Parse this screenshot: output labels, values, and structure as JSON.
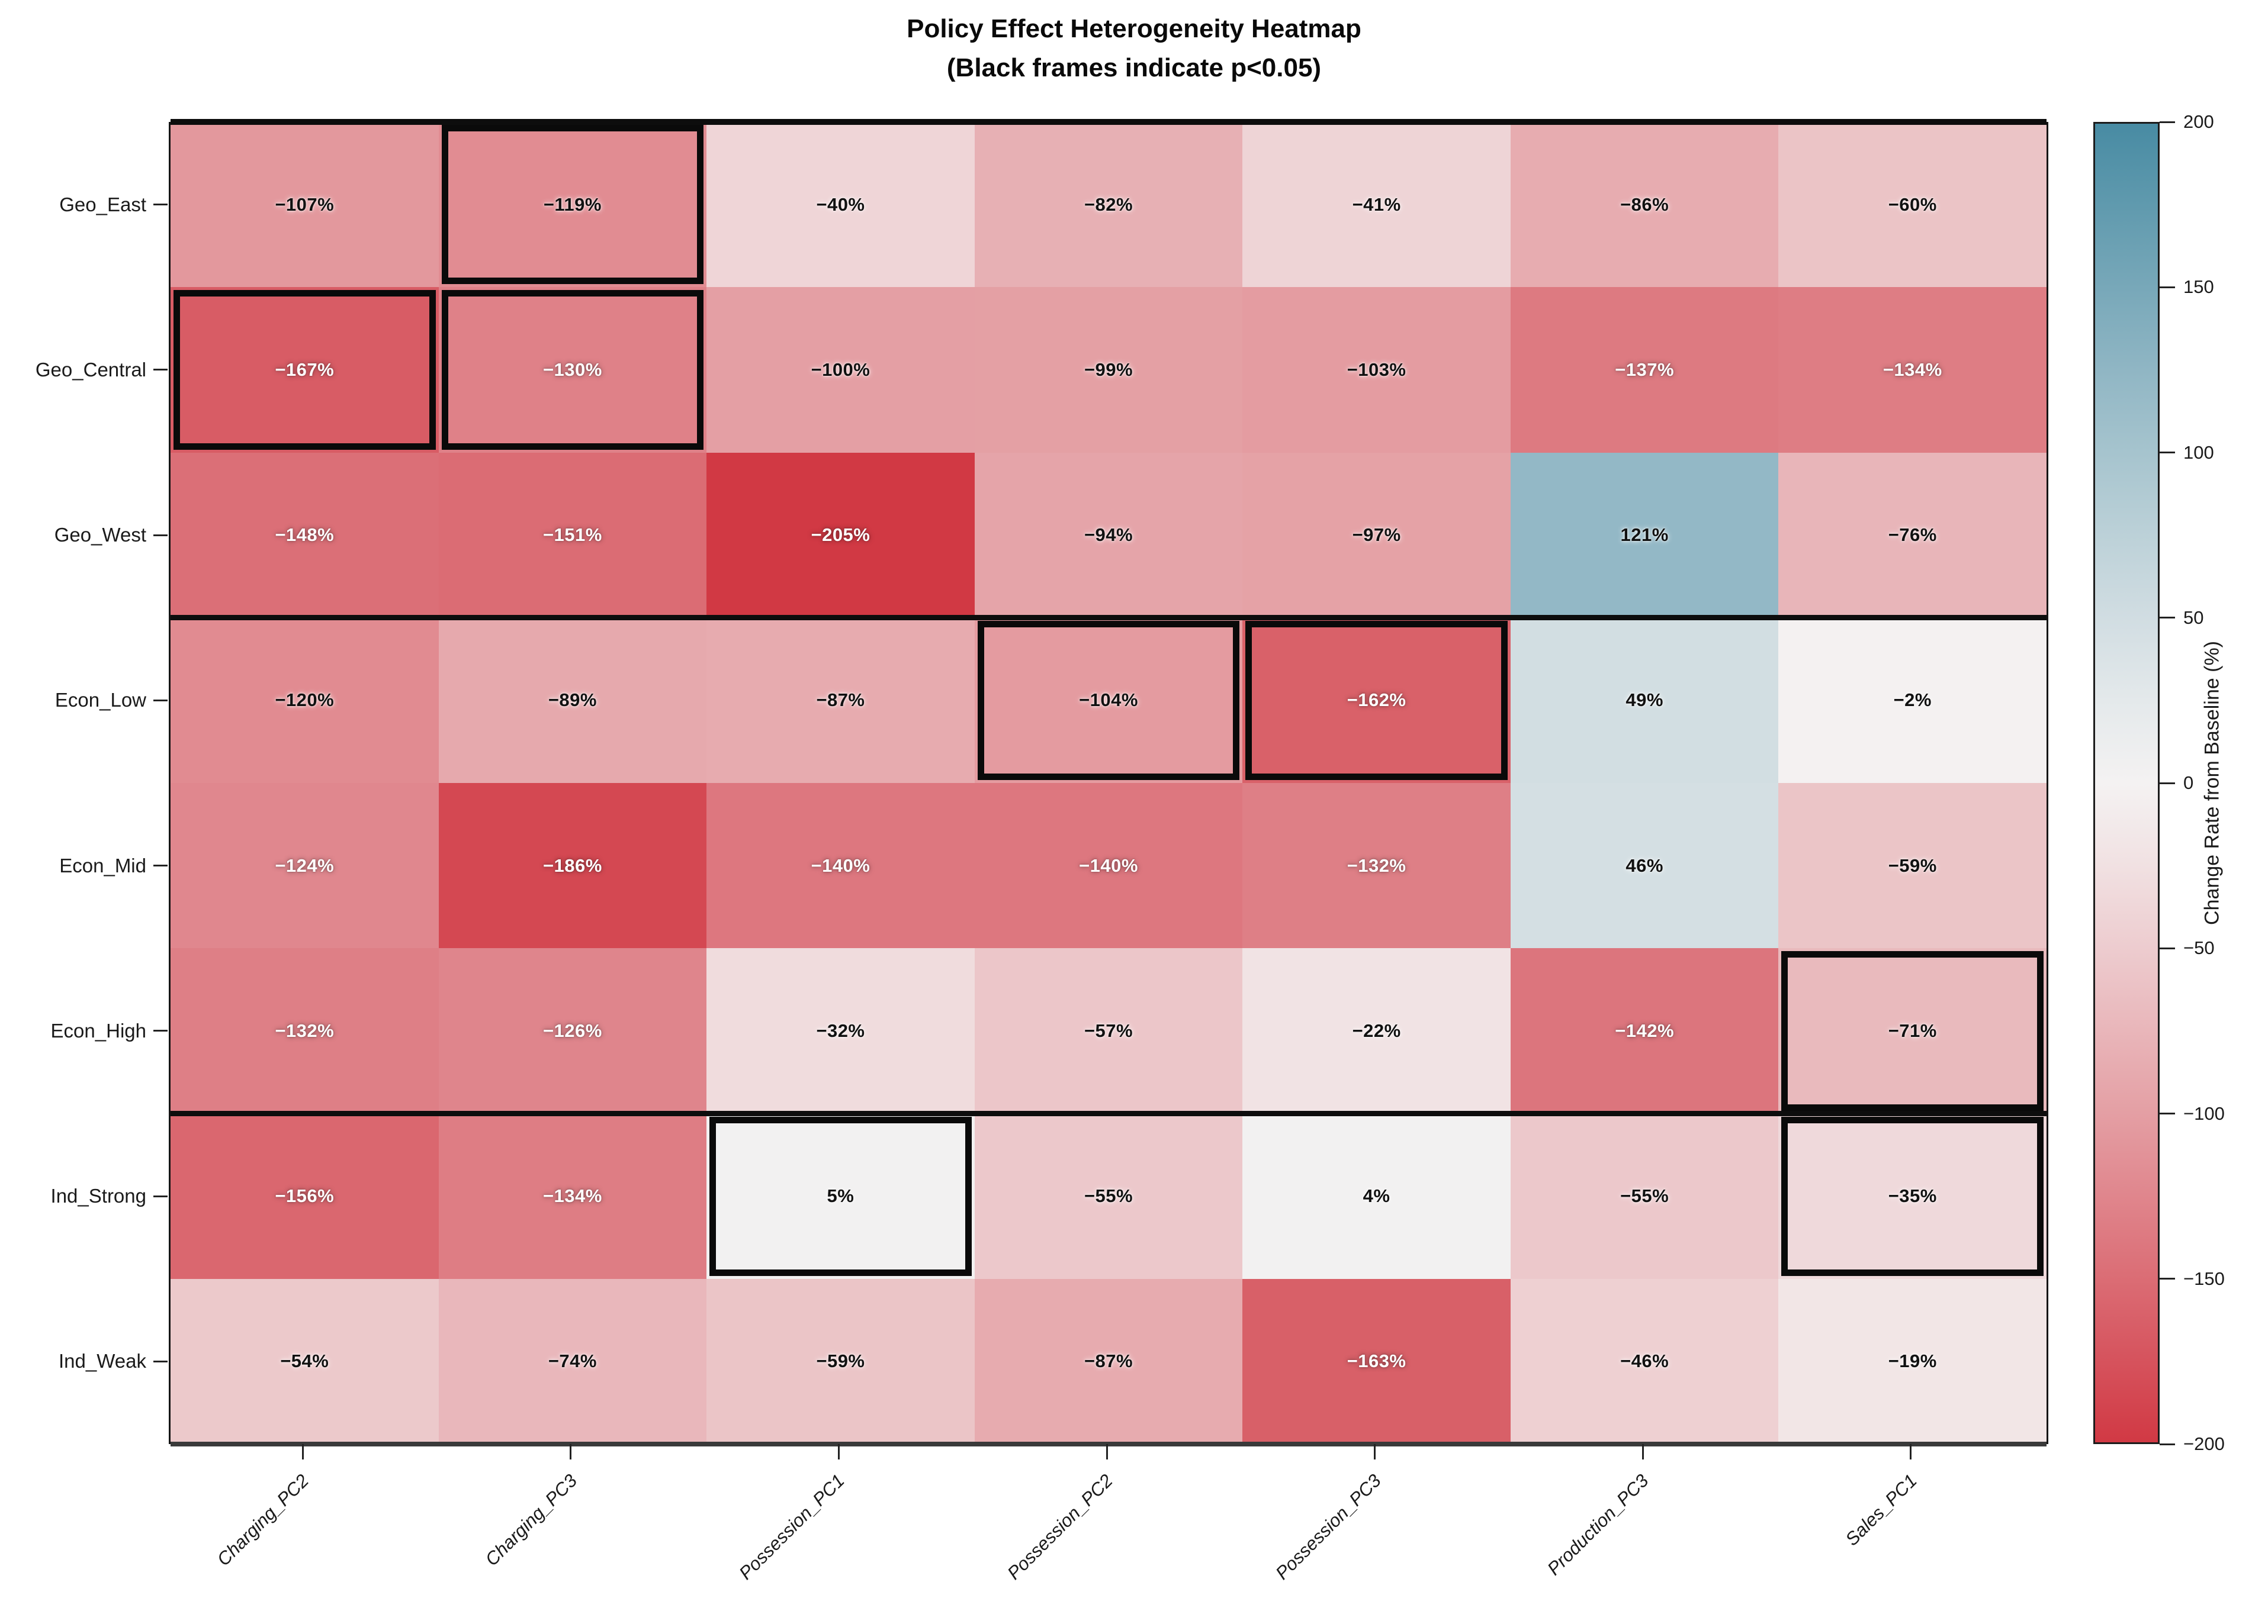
{
  "chart_data": {
    "type": "heatmap",
    "title": "Policy Effect Heterogeneity Heatmap",
    "subtitle": "(Black frames indicate p<0.05)",
    "rows": [
      "Geo_East",
      "Geo_Central",
      "Geo_West",
      "Econ_Low",
      "Econ_Mid",
      "Econ_High",
      "Ind_Strong",
      "Ind_Weak"
    ],
    "columns": [
      "Charging_PC2",
      "Charging_PC3",
      "Possession_PC1",
      "Possession_PC2",
      "Possession_PC3",
      "Production_PC3",
      "Sales_PC1"
    ],
    "values": [
      [
        -107,
        -119,
        -40,
        -82,
        -41,
        -86,
        -60
      ],
      [
        -167,
        -130,
        -100,
        -99,
        -103,
        -137,
        -134
      ],
      [
        -148,
        -151,
        -205,
        -94,
        -97,
        121,
        -76
      ],
      [
        -120,
        -89,
        -87,
        -104,
        -162,
        49,
        -2
      ],
      [
        -124,
        -186,
        -140,
        -140,
        -132,
        46,
        -59
      ],
      [
        -132,
        -126,
        -32,
        -57,
        -22,
        -142,
        -71
      ],
      [
        -156,
        -134,
        5,
        -55,
        4,
        -55,
        -35
      ],
      [
        -54,
        -74,
        -59,
        -87,
        -163,
        -46,
        -19
      ]
    ],
    "value_suffix": "%",
    "significant_cells": [
      {
        "row": 0,
        "col": 1
      },
      {
        "row": 1,
        "col": 0
      },
      {
        "row": 1,
        "col": 1
      },
      {
        "row": 3,
        "col": 3
      },
      {
        "row": 3,
        "col": 4
      },
      {
        "row": 5,
        "col": 6
      },
      {
        "row": 6,
        "col": 2
      },
      {
        "row": 6,
        "col": 6
      }
    ],
    "group_separators_after_rows": [
      3,
      6
    ],
    "grid": false,
    "colorbar": {
      "label": "Change Rate from Baseline (%)",
      "ticks": [
        200,
        150,
        100,
        50,
        0,
        -50,
        -100,
        -150,
        -200
      ],
      "vmin": -200,
      "vmax": 200,
      "color_negative_end": "#d13944",
      "color_center": "#f4f2f2",
      "color_positive_end": "#488ba3"
    }
  }
}
